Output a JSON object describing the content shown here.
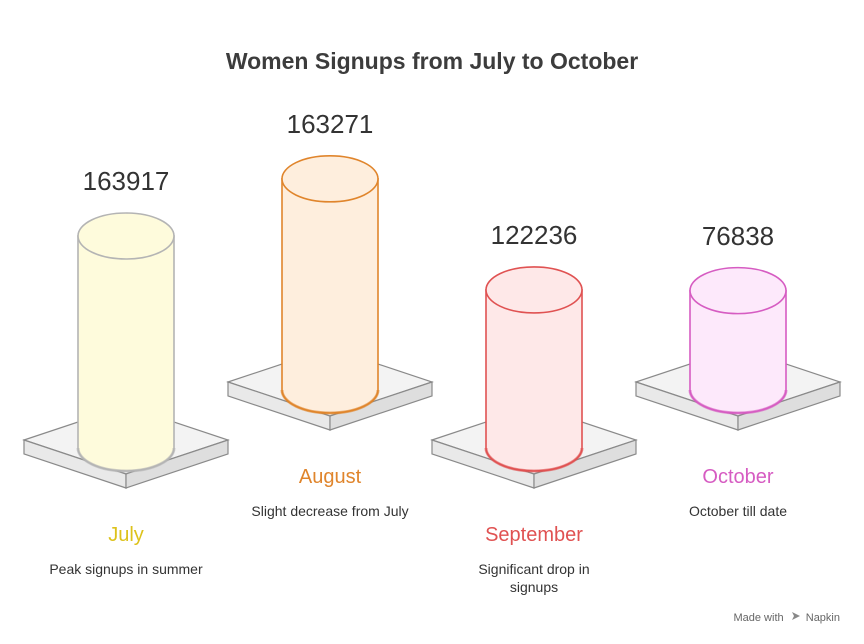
{
  "chart_data": {
    "type": "bar",
    "title": "Women Signups from July to October",
    "categories": [
      "July",
      "August",
      "September",
      "October"
    ],
    "values": [
      163917,
      163271,
      122236,
      76838
    ],
    "value_labels": [
      "163917",
      "163271",
      "122236",
      "76838"
    ],
    "descriptions": [
      "Peak signups in summer",
      "Slight decrease from July",
      "Significant drop in signups",
      "October till date"
    ],
    "colors": {
      "stroke": [
        "#b4b4b4",
        "#e0852c",
        "#e05252",
        "#d65cc2"
      ],
      "fill": [
        "#fefbdc",
        "#feeedd",
        "#fee8e8",
        "#fde9fb"
      ],
      "label": [
        "#ddc21b",
        "#e0852c",
        "#e05252",
        "#d65cc2"
      ]
    }
  },
  "footer": {
    "made_with": "Made with",
    "brand": "Napkin"
  }
}
